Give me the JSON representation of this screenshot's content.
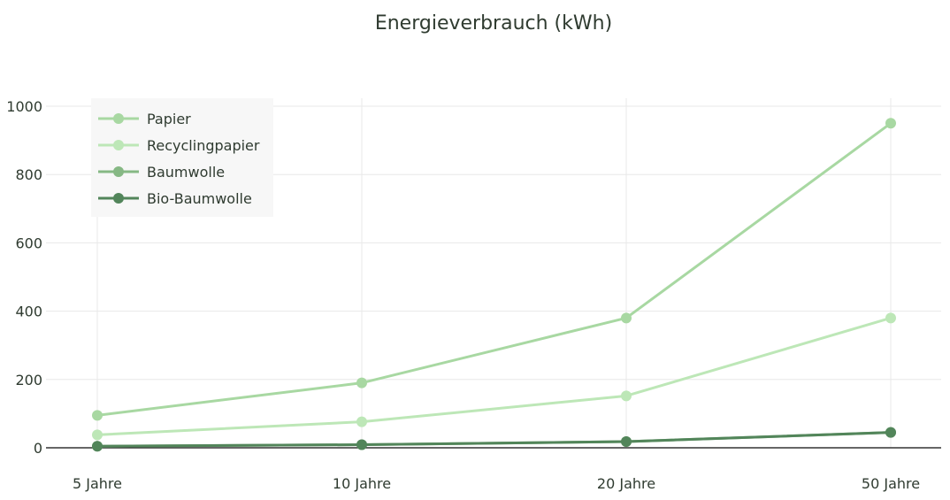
{
  "chart_data": {
    "type": "line",
    "title": "Energieverbrauch (kWh)",
    "xlabel": "",
    "ylabel": "",
    "categories": [
      "5 Jahre",
      "10 Jahre",
      "20 Jahre",
      "50 Jahre"
    ],
    "ylim": [
      0,
      1000
    ],
    "yticks": [
      0,
      200,
      400,
      600,
      800,
      1000
    ],
    "grid": true,
    "legend_position": "top-left",
    "series": [
      {
        "name": "Papier",
        "values": [
          95,
          190,
          380,
          950
        ],
        "color": "#a8d8a2"
      },
      {
        "name": "Recyclingpapier",
        "values": [
          38,
          76,
          152,
          380
        ],
        "color": "#bde7b7"
      },
      {
        "name": "Baumwolle",
        "values": [
          4.5,
          9,
          18,
          45
        ],
        "color": "#86b884"
      },
      {
        "name": "Bio-Baumwolle",
        "values": [
          4.5,
          9,
          18,
          45
        ],
        "color": "#52855a"
      }
    ]
  }
}
